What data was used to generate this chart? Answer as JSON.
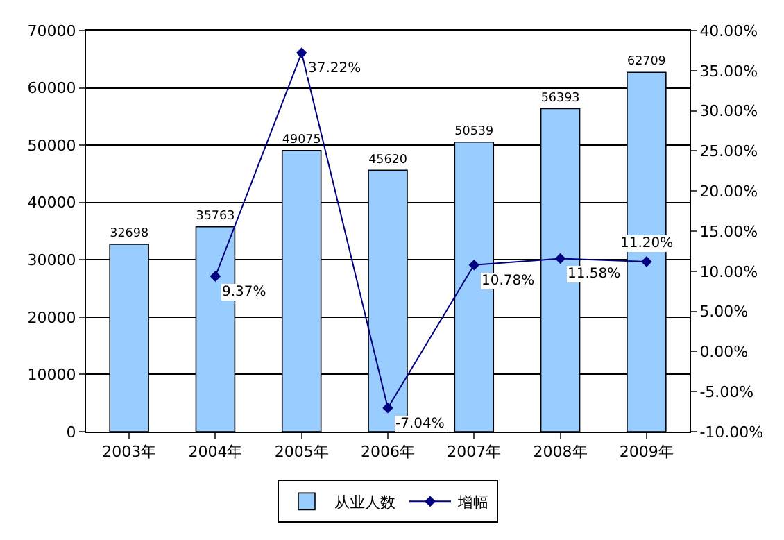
{
  "chart_data": {
    "type": "bar",
    "categories": [
      "2003年",
      "2004年",
      "2005年",
      "2006年",
      "2007年",
      "2008年",
      "2009年"
    ],
    "series": [
      {
        "name": "从业人数",
        "color": "#99ccff",
        "values": [
          32698,
          35763,
          49075,
          45620,
          50539,
          56393,
          62709
        ],
        "value_labels": [
          "32698",
          "35763",
          "49075",
          "45620",
          "50539",
          "56393",
          "62709"
        ]
      },
      {
        "name": "增幅",
        "type": "line",
        "axis": "y2",
        "color": "#000080",
        "marker": "diamond",
        "values": [
          null,
          9.37,
          37.22,
          -7.04,
          10.78,
          11.58,
          11.2
        ],
        "value_labels": [
          null,
          "9.37%",
          "37.22%",
          "-7.04%",
          "10.78%",
          "11.58%",
          "11.20%"
        ]
      }
    ],
    "ylim": [
      0,
      70000
    ],
    "yticks": [
      0,
      10000,
      20000,
      30000,
      40000,
      50000,
      60000,
      70000
    ],
    "y2lim": [
      -10,
      40
    ],
    "y2ticks": [
      {
        "value": -10,
        "label": "-10.00%"
      },
      {
        "value": -5,
        "label": "-5.00%"
      },
      {
        "value": 0,
        "label": "0.00%"
      },
      {
        "value": 5,
        "label": "5.00%"
      },
      {
        "value": 10,
        "label": "10.00%"
      },
      {
        "value": 15,
        "label": "15.00%"
      },
      {
        "value": 20,
        "label": "20.00%"
      },
      {
        "value": 25,
        "label": "25.00%"
      },
      {
        "value": 30,
        "label": "30.00%"
      },
      {
        "value": 35,
        "label": "35.00%"
      },
      {
        "value": 40,
        "label": "40.00%"
      }
    ],
    "grid": "y",
    "legend": "bottom"
  }
}
